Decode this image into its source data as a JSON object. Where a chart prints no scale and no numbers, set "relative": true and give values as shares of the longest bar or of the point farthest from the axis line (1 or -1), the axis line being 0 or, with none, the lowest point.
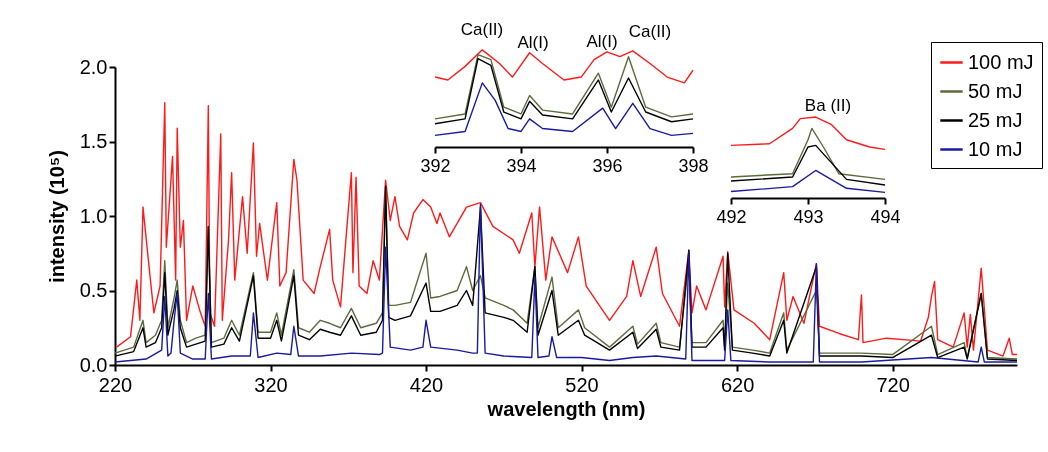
{
  "chart_data": [
    {
      "type": "line",
      "xlabel": "wavelength (nm)",
      "ylabel": "intensity (10⁵)",
      "xlim": [
        220,
        800
      ],
      "xticks": [
        220,
        320,
        420,
        520,
        620,
        720
      ],
      "ylim": [
        0,
        2
      ],
      "yticks": [
        {
          "value": 0,
          "label": "0.0"
        },
        {
          "value": 0.5,
          "label": "0.5"
        },
        {
          "value": 1,
          "label": "1.0"
        },
        {
          "value": 1.5,
          "label": "1.5"
        },
        {
          "value": 2,
          "label": "2.0"
        }
      ],
      "legend": "top right",
      "series": [
        {
          "name": "100 mJ",
          "color": "#ff1a1a",
          "x": [
            221,
            230,
            234,
            236,
            238,
            241,
            245,
            249,
            252,
            253,
            257,
            259,
            260,
            262,
            264,
            266,
            270,
            275,
            278,
            280,
            281,
            284,
            288,
            289,
            293,
            295,
            297,
            302,
            305,
            309,
            311,
            313,
            318,
            324,
            326,
            330,
            335,
            337,
            341,
            348,
            352,
            358,
            360,
            365,
            369,
            372,
            373,
            375,
            377,
            382,
            386,
            390,
            394,
            397,
            400,
            403,
            408,
            412,
            418,
            423,
            427,
            429,
            435,
            446,
            455,
            463,
            476,
            480,
            488,
            490,
            493,
            497,
            501,
            511,
            518,
            523,
            538,
            549,
            553,
            558,
            568,
            572,
            583,
            589,
            591,
            594,
            600,
            611,
            612,
            614,
            618,
            631,
            641,
            650,
            652,
            656,
            663,
            671,
            673,
            686,
            698,
            700,
            701,
            716,
            727,
            738,
            743,
            745,
            747,
            749,
            759,
            766,
            768,
            770,
            772,
            777,
            781,
            791,
            795,
            797,
            800
          ],
          "values": [
            0.12,
            0.19,
            0.57,
            0.3,
            1.06,
            0.75,
            0.35,
            0.53,
            1.76,
            0.79,
            1.4,
            0.57,
            1.59,
            0.79,
            0.97,
            0.3,
            0.53,
            0.35,
            0.26,
            1.74,
            0.35,
            0.26,
            1.55,
            0.3,
            0.84,
            1.29,
            0.57,
            1.13,
            0.75,
            1.49,
            0.73,
            0.95,
            0.57,
            1.09,
            0.53,
            0.62,
            1.38,
            1.24,
            0.57,
            0.48,
            0.66,
            0.91,
            0.57,
            0.39,
            0.91,
            1.29,
            0.62,
            1.26,
            0.53,
            0.48,
            0.7,
            0.57,
            1.24,
            0.97,
            1.13,
            0.93,
            0.84,
            1.02,
            1.11,
            1.06,
            0.95,
            1.02,
            0.86,
            1.06,
            1.09,
            0.93,
            0.84,
            0.75,
            1.02,
            0.66,
            1.06,
            0.57,
            0.86,
            0.62,
            0.86,
            0.53,
            0.3,
            0.46,
            0.7,
            0.46,
            0.79,
            0.48,
            0.26,
            0.77,
            0.35,
            0.53,
            0.37,
            0.73,
            0.39,
            0.76,
            0.37,
            0.28,
            0.17,
            0.62,
            0.3,
            0.46,
            0.28,
            0.68,
            0.26,
            0.21,
            0.17,
            0.47,
            0.15,
            0.18,
            0.17,
            0.16,
            0.32,
            0.46,
            0.56,
            0.17,
            0.12,
            0.35,
            0.12,
            0.34,
            0.1,
            0.65,
            0.1,
            0.06,
            0.18,
            0.07,
            0.07
          ]
        },
        {
          "name": "50 mJ",
          "color": "#5b6b3d",
          "x": [
            220,
            232,
            238,
            240,
            246,
            250,
            252,
            254,
            258,
            260,
            262,
            266,
            272,
            278,
            280,
            282,
            290,
            295,
            300,
            309,
            312,
            320,
            324,
            327,
            335,
            338,
            345,
            352,
            358,
            365,
            372,
            378,
            388,
            392,
            394,
            396,
            400,
            410,
            420,
            423,
            429,
            440,
            446,
            450,
            455,
            458,
            470,
            476,
            485,
            490,
            492,
            501,
            505,
            518,
            522,
            538,
            553,
            556,
            568,
            571,
            583,
            589,
            591,
            600,
            611,
            612,
            614,
            617,
            630,
            641,
            650,
            652,
            671,
            673,
            686,
            700,
            720,
            745,
            749,
            766,
            768,
            777,
            781,
            800
          ],
          "values": [
            0.08,
            0.12,
            0.3,
            0.15,
            0.2,
            0.3,
            0.7,
            0.25,
            0.45,
            0.57,
            0.3,
            0.15,
            0.18,
            0.2,
            0.93,
            0.15,
            0.18,
            0.3,
            0.2,
            0.62,
            0.22,
            0.22,
            0.35,
            0.2,
            0.64,
            0.25,
            0.22,
            0.3,
            0.28,
            0.25,
            0.38,
            0.25,
            0.28,
            0.35,
            1.17,
            0.4,
            0.4,
            0.42,
            0.75,
            0.45,
            0.46,
            0.5,
            0.66,
            0.5,
            0.6,
            0.45,
            0.4,
            0.37,
            0.28,
            0.66,
            0.25,
            0.59,
            0.25,
            0.37,
            0.25,
            0.12,
            0.26,
            0.14,
            0.28,
            0.15,
            0.12,
            0.7,
            0.15,
            0.15,
            0.3,
            0.12,
            0.55,
            0.12,
            0.1,
            0.08,
            0.35,
            0.1,
            0.5,
            0.08,
            0.08,
            0.08,
            0.07,
            0.26,
            0.07,
            0.15,
            0.05,
            0.48,
            0.05,
            0.04
          ]
        },
        {
          "name": "25 mJ",
          "color": "#000000",
          "x": [
            220,
            232,
            238,
            240,
            246,
            250,
            252,
            254,
            258,
            260,
            262,
            266,
            272,
            278,
            280,
            282,
            290,
            295,
            300,
            309,
            312,
            320,
            324,
            327,
            335,
            338,
            345,
            352,
            358,
            365,
            372,
            378,
            388,
            392,
            394,
            396,
            400,
            410,
            420,
            423,
            429,
            440,
            446,
            450,
            455,
            458,
            470,
            476,
            485,
            490,
            492,
            501,
            505,
            518,
            522,
            538,
            553,
            556,
            568,
            571,
            583,
            589,
            591,
            600,
            611,
            612,
            614,
            617,
            630,
            641,
            650,
            652,
            671,
            673,
            686,
            700,
            720,
            745,
            749,
            766,
            768,
            777,
            781,
            800
          ],
          "values": [
            0.06,
            0.09,
            0.25,
            0.12,
            0.15,
            0.25,
            0.62,
            0.2,
            0.38,
            0.5,
            0.25,
            0.12,
            0.14,
            0.16,
            0.93,
            0.12,
            0.14,
            0.25,
            0.16,
            0.6,
            0.18,
            0.18,
            0.3,
            0.16,
            0.6,
            0.2,
            0.17,
            0.24,
            0.22,
            0.2,
            0.33,
            0.2,
            0.22,
            0.3,
            1.2,
            0.32,
            0.3,
            0.33,
            0.55,
            0.36,
            0.36,
            0.4,
            0.5,
            0.4,
            1.06,
            0.35,
            0.32,
            0.3,
            0.22,
            0.66,
            0.2,
            0.5,
            0.2,
            0.3,
            0.2,
            0.1,
            0.22,
            0.11,
            0.24,
            0.12,
            0.1,
            0.77,
            0.12,
            0.12,
            0.25,
            0.1,
            0.75,
            0.1,
            0.08,
            0.06,
            0.3,
            0.08,
            0.66,
            0.06,
            0.06,
            0.06,
            0.05,
            0.2,
            0.05,
            0.12,
            0.04,
            0.48,
            0.04,
            0.03
          ]
        },
        {
          "name": "10 mJ",
          "color": "#1a1aa0",
          "x": [
            220,
            240,
            250,
            252,
            254,
            256,
            258,
            260,
            262,
            270,
            278,
            280,
            282,
            295,
            307,
            309,
            312,
            324,
            333,
            335,
            338,
            352,
            372,
            390,
            392,
            394,
            397,
            410,
            418,
            420,
            423,
            440,
            450,
            453,
            455,
            458,
            470,
            488,
            490,
            492,
            499,
            501,
            504,
            520,
            538,
            553,
            568,
            587,
            589,
            591,
            612,
            614,
            616,
            641,
            669,
            671,
            673,
            700,
            745,
            775,
            777,
            779,
            800
          ],
          "values": [
            0.02,
            0.04,
            0.1,
            0.46,
            0.06,
            0.08,
            0.3,
            0.48,
            0.08,
            0.04,
            0.04,
            0.48,
            0.04,
            0.06,
            0.06,
            0.35,
            0.05,
            0.08,
            0.07,
            0.26,
            0.06,
            0.06,
            0.08,
            0.07,
            0.08,
            0.79,
            0.12,
            0.1,
            0.12,
            0.3,
            0.12,
            0.1,
            0.08,
            0.08,
            1.08,
            0.08,
            0.06,
            0.05,
            0.59,
            0.05,
            0.06,
            0.19,
            0.05,
            0.05,
            0.03,
            0.05,
            0.06,
            0.04,
            0.76,
            0.03,
            0.03,
            0.37,
            0.03,
            0.02,
            0.02,
            0.68,
            0.02,
            0.02,
            0.05,
            0.02,
            0.12,
            0.02,
            0.02
          ]
        }
      ]
    },
    {
      "type": "line",
      "relative": true,
      "xlim": [
        392,
        398
      ],
      "xticks": [
        392,
        394,
        396,
        398
      ],
      "annotations": [
        "Ca(II)",
        "Al(I)",
        "Al(I)",
        "Ca(II)"
      ],
      "series": [
        {
          "color": "#ff1a1a",
          "x": [
            392,
            392.3,
            392.7,
            393.1,
            393.5,
            393.8,
            394.2,
            394.5,
            395,
            395.4,
            395.7,
            396,
            396.3,
            396.6,
            397,
            397.4,
            397.8,
            398
          ],
          "values": [
            0.72,
            0.69,
            0.83,
            1,
            0.86,
            0.72,
            0.97,
            0.86,
            0.69,
            0.72,
            0.9,
            0.98,
            0.93,
            0.99,
            0.86,
            0.72,
            0.66,
            0.79
          ]
        },
        {
          "color": "#5b6b3d",
          "x": [
            392,
            392.7,
            393,
            393.3,
            393.6,
            394,
            394.2,
            394.5,
            395.2,
            395.8,
            396.1,
            396.5,
            396.9,
            397.5,
            398
          ],
          "values": [
            0.29,
            0.34,
            0.95,
            0.9,
            0.41,
            0.34,
            0.53,
            0.38,
            0.34,
            0.76,
            0.41,
            0.93,
            0.41,
            0.31,
            0.34
          ]
        },
        {
          "color": "#000000",
          "x": [
            392,
            392.7,
            393,
            393.3,
            393.6,
            394,
            394.2,
            394.5,
            395.2,
            395.8,
            396.1,
            396.5,
            396.9,
            397.5,
            398
          ],
          "values": [
            0.24,
            0.29,
            0.91,
            0.84,
            0.36,
            0.29,
            0.47,
            0.33,
            0.29,
            0.69,
            0.36,
            0.71,
            0.36,
            0.26,
            0.29
          ]
        },
        {
          "color": "#1a1aa0",
          "x": [
            392,
            392.7,
            393.1,
            393.4,
            393.7,
            394,
            394.2,
            394.5,
            395.2,
            395.9,
            396.2,
            396.6,
            397,
            397.5,
            398
          ],
          "values": [
            0.12,
            0.16,
            0.66,
            0.48,
            0.19,
            0.16,
            0.29,
            0.19,
            0.16,
            0.4,
            0.19,
            0.45,
            0.19,
            0.12,
            0.14
          ]
        }
      ]
    },
    {
      "type": "line",
      "relative": true,
      "xlim": [
        492,
        494
      ],
      "xticks": [
        492,
        493,
        494
      ],
      "annotations": [
        "Ba (II)"
      ],
      "series": [
        {
          "color": "#ff1a1a",
          "x": [
            492,
            492.5,
            492.8,
            492.9,
            493.1,
            493.3,
            493.5,
            493.8,
            494
          ],
          "values": [
            0.65,
            0.67,
            0.86,
            0.98,
            1,
            0.91,
            0.72,
            0.63,
            0.6
          ]
        },
        {
          "color": "#5b6b3d",
          "x": [
            492,
            492.8,
            493,
            493.05,
            493.2,
            493.4,
            494
          ],
          "values": [
            0.26,
            0.3,
            0.72,
            0.86,
            0.63,
            0.3,
            0.23
          ]
        },
        {
          "color": "#000000",
          "x": [
            492,
            492.8,
            493,
            493.1,
            493.3,
            493.5,
            494
          ],
          "values": [
            0.21,
            0.26,
            0.63,
            0.65,
            0.44,
            0.23,
            0.16
          ]
        },
        {
          "color": "#1a1aa0",
          "x": [
            492,
            492.8,
            493.1,
            493.3,
            493.5,
            494
          ],
          "values": [
            0.08,
            0.14,
            0.34,
            0.23,
            0.12,
            0.07
          ]
        }
      ]
    }
  ]
}
